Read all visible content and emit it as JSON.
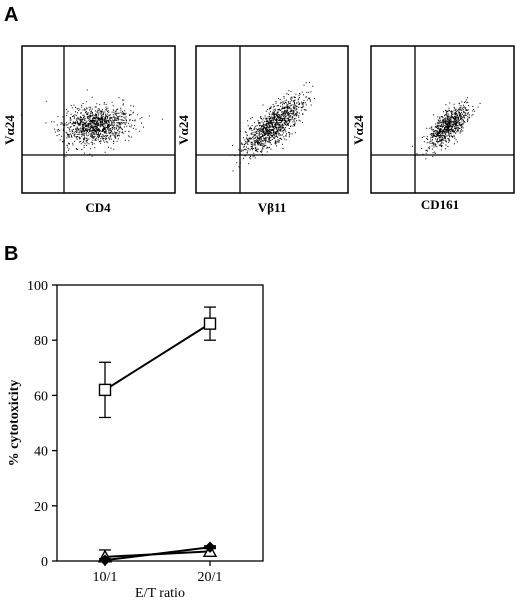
{
  "panels": {
    "a": "A",
    "b": "B"
  },
  "flow_plots": [
    {
      "ylabel": "Vα24",
      "xlabel": "CD4"
    },
    {
      "ylabel": "Vα24",
      "xlabel": "Vβ11"
    },
    {
      "ylabel": "Vα24",
      "xlabel": "CD161"
    }
  ],
  "chart_data": {
    "type": "line",
    "title": "",
    "xlabel": "E/T ratio",
    "ylabel": "% cytotoxicity",
    "categories": [
      "10/1",
      "20/1"
    ],
    "ylim": [
      0,
      100
    ],
    "yticks": [
      "0",
      "20",
      "40",
      "60",
      "80",
      "100"
    ],
    "grid": false,
    "series": [
      {
        "marker": "open-square",
        "values": [
          62,
          86
        ],
        "error": [
          10,
          6
        ]
      },
      {
        "marker": "open-triangle",
        "values": [
          1.5,
          3.5
        ],
        "error": [
          2.5,
          1.5
        ]
      },
      {
        "marker": "filled-diamond",
        "values": [
          0.3,
          5
        ],
        "error": [
          0.5,
          0.5
        ]
      }
    ]
  }
}
